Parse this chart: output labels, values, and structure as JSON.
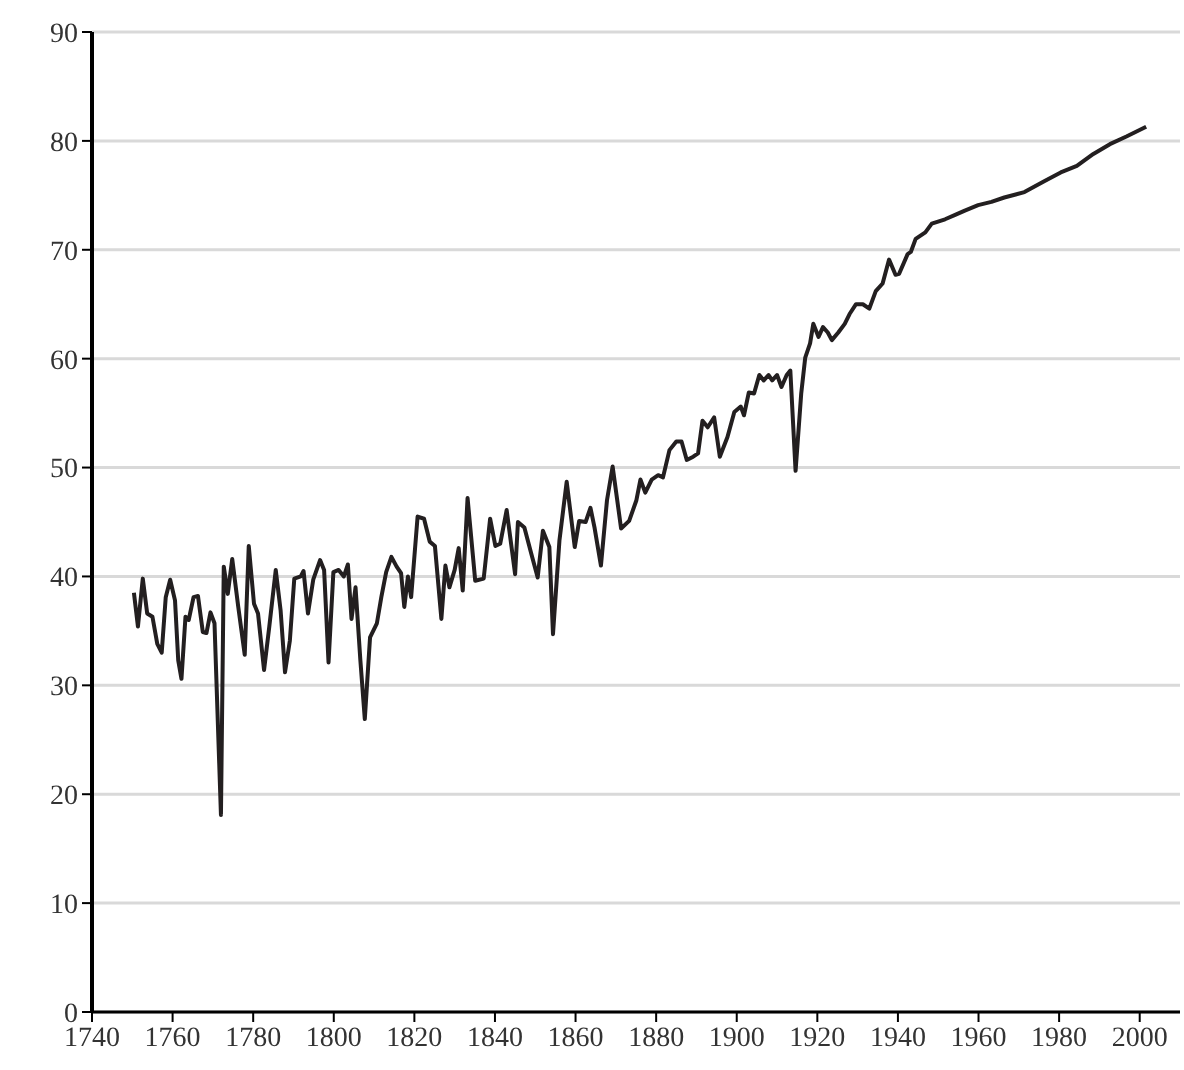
{
  "chart_data": {
    "type": "line",
    "x": [
      1750.4,
      1751.4,
      1752.6,
      1753.7,
      1755,
      1756.2,
      1757.3,
      1758.3,
      1759.4,
      1760.6,
      1761.4,
      1762.2,
      1763.2,
      1764,
      1765.2,
      1766.3,
      1767.5,
      1768.4,
      1769.4,
      1770.4,
      1772,
      1772.7,
      1773.7,
      1774.8,
      1776.3,
      1777.9,
      1778.9,
      1780.2,
      1781.2,
      1782.7,
      1784,
      1785.6,
      1786.8,
      1787.9,
      1789.1,
      1790.2,
      1791.8,
      1792.5,
      1793.6,
      1794.9,
      1796.6,
      1797.6,
      1798.7,
      1799.9,
      1801.2,
      1802.5,
      1803.5,
      1804.4,
      1805.4,
      1806.6,
      1807.7,
      1809,
      1810.7,
      1811.8,
      1813,
      1814.3,
      1815.6,
      1816.7,
      1817.5,
      1818.4,
      1819.2,
      1820.8,
      1822.4,
      1823.8,
      1825.1,
      1826.7,
      1827.7,
      1828.7,
      1830,
      1831,
      1832,
      1833.2,
      1835.1,
      1837.2,
      1838.8,
      1840.1,
      1841.3,
      1842.9,
      1845,
      1845.7,
      1847.3,
      1849,
      1850.6,
      1851.9,
      1853.5,
      1854.4,
      1856,
      1857.8,
      1859.8,
      1860.9,
      1862.5,
      1863.7,
      1864.7,
      1866.3,
      1867.8,
      1869.2,
      1871.3,
      1873.3,
      1875.1,
      1876.1,
      1877.3,
      1878.9,
      1880.5,
      1881.7,
      1883.3,
      1885,
      1886.3,
      1887.6,
      1889.2,
      1890.4,
      1891.5,
      1892.8,
      1894.4,
      1895.8,
      1897.7,
      1899.4,
      1901,
      1901.8,
      1903,
      1904.3,
      1905.6,
      1906.7,
      1907.9,
      1908.8,
      1910,
      1911.1,
      1912.4,
      1913.3,
      1914.6,
      1916,
      1917,
      1918.2,
      1919,
      1920.3,
      1921.4,
      1922.6,
      1923.6,
      1925.2,
      1926.8,
      1928,
      1929.6,
      1931.3,
      1932.9,
      1934.5,
      1936.2,
      1937.8,
      1939.4,
      1940.3,
      1942.4,
      1943.2,
      1944.4,
      1946.8,
      1948.4,
      1951.7,
      1954.2,
      1956.6,
      1959.9,
      1963.2,
      1966.4,
      1971.4,
      1976.3,
      1980.4,
      1984.4,
      1988.5,
      1992.6,
      1996.7,
      2001.6
    ],
    "series": [
      {
        "color": "#231f20",
        "values": [
          38.5,
          35.4,
          39.8,
          36.6,
          36.3,
          33.8,
          33.0,
          38.1,
          39.7,
          37.8,
          32.3,
          30.6,
          36.3,
          36.0,
          38.1,
          38.2,
          34.9,
          34.8,
          36.7,
          35.7,
          18.1,
          40.9,
          38.4,
          41.6,
          37.2,
          32.8,
          42.8,
          37.5,
          36.6,
          31.4,
          35.4,
          40.6,
          36.9,
          31.2,
          34.1,
          39.8,
          40.0,
          40.5,
          36.6,
          39.7,
          41.5,
          40.6,
          32.1,
          40.4,
          40.6,
          40.0,
          41.1,
          36.1,
          39.0,
          32.3,
          26.9,
          34.4,
          35.7,
          38.1,
          40.4,
          41.8,
          40.9,
          40.3,
          37.2,
          40.0,
          38.1,
          45.5,
          45.3,
          43.2,
          42.8,
          36.1,
          41.0,
          39.0,
          40.6,
          42.6,
          38.7,
          47.2,
          39.6,
          39.8,
          45.3,
          42.8,
          43.0,
          46.1,
          40.2,
          45.0,
          44.5,
          42.1,
          39.9,
          44.2,
          42.7,
          34.7,
          43.3,
          48.7,
          42.7,
          45.1,
          45.0,
          46.3,
          44.5,
          41.0,
          47.0,
          50.1,
          44.4,
          45.1,
          47.0,
          48.9,
          47.7,
          48.9,
          49.3,
          49.1,
          51.6,
          52.4,
          52.4,
          50.7,
          51.0,
          51.3,
          54.3,
          53.7,
          54.6,
          51.0,
          52.8,
          55.1,
          55.6,
          54.8,
          56.9,
          56.8,
          58.5,
          58.0,
          58.5,
          58.0,
          58.5,
          57.4,
          58.5,
          58.9,
          49.7,
          56.8,
          60.1,
          61.4,
          63.2,
          62.0,
          62.9,
          62.4,
          61.7,
          62.4,
          63.2,
          64.1,
          65.0,
          65.0,
          64.6,
          66.2,
          66.9,
          69.1,
          67.7,
          67.8,
          69.6,
          69.8,
          71.0,
          71.6,
          72.4,
          72.8,
          73.2,
          73.6,
          74.1,
          74.4,
          74.8,
          75.3,
          76.3,
          77.1,
          77.7,
          78.8,
          79.7,
          80.4,
          81.3
        ]
      }
    ],
    "xlim": [
      1740,
      2010
    ],
    "xticks": [
      1740,
      1760,
      1780,
      1800,
      1820,
      1840,
      1860,
      1880,
      1900,
      1920,
      1940,
      1960,
      1980,
      2000
    ],
    "ylim": [
      0,
      90
    ],
    "yticks": [
      0,
      10,
      20,
      30,
      40,
      50,
      60,
      70,
      80,
      90
    ],
    "grid": "y",
    "legend": false,
    "marker": "none",
    "line_style": "solid"
  }
}
